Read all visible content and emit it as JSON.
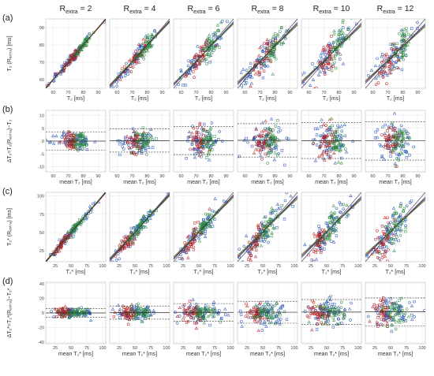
{
  "chart_data": {
    "type": "scatter",
    "colors": {
      "blue": "#1f4fb3",
      "red": "#b51a1a",
      "green": "#2a8a3a",
      "grid": "#e6e6e6",
      "frame": "#bdbdbd"
    },
    "marker_shapes": [
      "circle",
      "triangle",
      "square"
    ],
    "columns": [
      {
        "r_main": "R",
        "r_sub": "extra",
        "r_val": " = 2"
      },
      {
        "r_main": "R",
        "r_sub": "extra",
        "r_val": " = 4"
      },
      {
        "r_main": "R",
        "r_sub": "extra",
        "r_val": " = 6"
      },
      {
        "r_main": "R",
        "r_sub": "extra",
        "r_val": " = 8"
      },
      {
        "r_main": "R",
        "r_sub": "extra",
        "r_val": " = 10"
      },
      {
        "r_main": "R",
        "r_sub": "extra",
        "r_val": " = 12"
      }
    ],
    "rows": [
      {
        "label": "(a)",
        "kind": "correlation",
        "xlim": [
          55,
          95
        ],
        "ylim": [
          55,
          95
        ],
        "xticks": [
          60,
          70,
          80,
          90
        ],
        "yticks": [
          60,
          70,
          80,
          90
        ],
        "xlabel": "T₂ [ms]",
        "ylabel": "T₂ (Rₑₓₜᵣₐ) [ms]",
        "fit_slopes": [
          [
            1.0,
            0.98,
            1.01
          ],
          [
            0.95,
            0.93,
            0.9
          ],
          [
            0.92,
            0.88,
            0.86
          ],
          [
            0.9,
            0.86,
            0.82
          ],
          [
            0.88,
            0.84,
            0.8
          ],
          [
            0.86,
            0.82,
            0.78
          ]
        ],
        "clusters": [
          {
            "series": "blue",
            "cx": 72,
            "cy": 72,
            "sx": 8,
            "sy": 8
          },
          {
            "series": "red",
            "cx": 72,
            "cy": 72,
            "sx": 4,
            "sy": 4
          },
          {
            "series": "green",
            "cx": 80,
            "cy": 80,
            "sx": 3,
            "sy": 3
          }
        ],
        "spread": [
          1.5,
          2.5,
          3.2,
          4.0,
          4.6,
          5.2
        ]
      },
      {
        "label": "(b)",
        "kind": "bland-altman",
        "xlim": [
          55,
          95
        ],
        "ylim": [
          -12,
          12
        ],
        "xticks": [
          60,
          70,
          80,
          90
        ],
        "yticks": [
          -10,
          -5,
          0,
          5,
          10
        ],
        "xlabel": "mean T₂ [ms]",
        "ylabel": "ΔT₂=T₂(Rₑₓₜᵣₐ)−T₂",
        "mean_bias": [
          0.0,
          0.2,
          0.2,
          0.3,
          0.2,
          0.1
        ],
        "loa": [
          3.5,
          4.5,
          5.5,
          6.5,
          7.0,
          7.5
        ],
        "clusters": [
          {
            "series": "blue",
            "cx": 74,
            "sx": 6
          },
          {
            "series": "red",
            "cx": 72,
            "sx": 3
          },
          {
            "series": "green",
            "cx": 78,
            "sx": 2.5
          }
        ]
      },
      {
        "label": "(c)",
        "kind": "correlation",
        "xlim": [
          10,
          105
        ],
        "ylim": [
          10,
          105
        ],
        "xticks": [
          25,
          50,
          75,
          100
        ],
        "yticks": [
          25,
          50,
          75,
          100
        ],
        "xlabel": "T₂* [ms]",
        "ylabel": "T₂* (Rₑₓₜᵣₐ) [ms]",
        "fit_slopes": [
          [
            1.0,
            0.98,
            1.02
          ],
          [
            0.96,
            0.93,
            0.9
          ],
          [
            0.93,
            0.9,
            0.86
          ],
          [
            0.9,
            0.86,
            0.82
          ],
          [
            0.88,
            0.84,
            0.8
          ],
          [
            0.86,
            0.82,
            0.78
          ]
        ],
        "clusters": [
          {
            "series": "blue",
            "cx": 52,
            "cy": 52,
            "sx": 18,
            "sy": 18
          },
          {
            "series": "red",
            "cx": 38,
            "cy": 38,
            "sx": 8,
            "sy": 8
          },
          {
            "series": "green",
            "cx": 58,
            "cy": 58,
            "sx": 10,
            "sy": 10
          }
        ],
        "spread": [
          3.0,
          5.0,
          7.0,
          9.0,
          10.0,
          11.0
        ]
      },
      {
        "label": "(d)",
        "kind": "bland-altman",
        "xlim": [
          10,
          105
        ],
        "ylim": [
          -42,
          42
        ],
        "xticks": [
          25,
          50,
          75,
          100
        ],
        "yticks": [
          -40,
          -20,
          0,
          20,
          40
        ],
        "xlabel": "mean T₂* [ms]",
        "ylabel": "ΔT₂*=T₂*(Rₑₓₜᵣₐ)−T₂*",
        "mean_bias": [
          0.0,
          0.5,
          0.8,
          1.0,
          1.2,
          1.5
        ],
        "loa": [
          6,
          9,
          12,
          15,
          17,
          19
        ],
        "clusters": [
          {
            "series": "blue",
            "cx": 55,
            "sx": 16
          },
          {
            "series": "red",
            "cx": 38,
            "sx": 8
          },
          {
            "series": "green",
            "cx": 58,
            "sx": 10
          }
        ]
      }
    ]
  }
}
